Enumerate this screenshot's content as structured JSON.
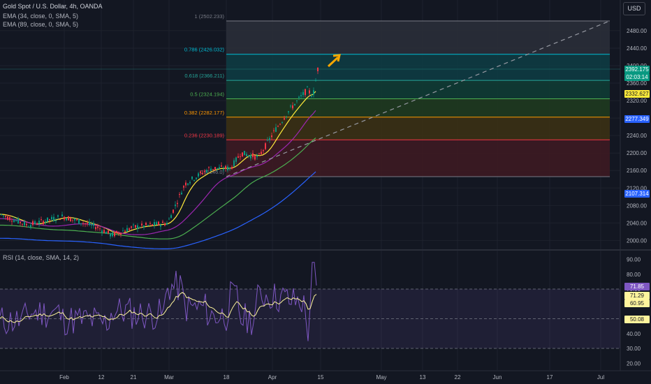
{
  "header": {
    "symbol_title": "Gold Spot / U.S. Dollar, 4h, OANDA",
    "ema1_label": "EMA (34, close, 0, SMA, 5)",
    "ema2_label": "EMA (89, close, 0, SMA, 5)",
    "currency_button": "USD"
  },
  "rsi_panel": {
    "label": "RSI (14, close, SMA, 14, 2)"
  },
  "price_tags": [
    {
      "label": "2392.175",
      "bg": "#089981",
      "fg": "#ffffff"
    },
    {
      "label": "02:03:14",
      "bg": "#089981",
      "fg": "#ffffff"
    },
    {
      "label": "2332.627",
      "bg": "#ffeb3b",
      "fg": "#131722"
    },
    {
      "label": "2277.349",
      "bg": "#2962ff",
      "fg": "#ffffff"
    },
    {
      "label": "2107.314",
      "bg": "#2962ff",
      "fg": "#ffffff"
    }
  ],
  "rsi_tags": [
    {
      "label": "71.85",
      "bg": "#7e57c2",
      "fg": "#ffffff"
    },
    {
      "label": "71.29",
      "bg": "#fff59d",
      "fg": "#131722"
    },
    {
      "label": "60.95",
      "bg": "#fff59d",
      "fg": "#131722"
    },
    {
      "label": "50.08",
      "bg": "#fff59d",
      "fg": "#131722"
    }
  ],
  "chart_data": [
    {
      "type": "candlestick",
      "title": "Gold Spot / U.S. Dollar, 4h, OANDA",
      "ylim": [
        1980,
        2510
      ],
      "y_ticks": [
        2000,
        2040,
        2080,
        2120,
        2160,
        2200,
        2240,
        2280,
        2320,
        2360,
        2400,
        2440,
        2480
      ],
      "x_tick_labels": [
        "Feb",
        "12",
        "21",
        "Mar",
        "18",
        "Apr",
        "15",
        "May",
        "13",
        "22",
        "Jun",
        "17",
        "Jul"
      ],
      "fibonacci": [
        {
          "ratio": "1",
          "price": 2502.233,
          "label": "1 (2502.233)",
          "color": "#787b86"
        },
        {
          "ratio": "0.786",
          "price": 2426.032,
          "label": "0.786 (2426.032)",
          "color": "#00bcd4"
        },
        {
          "ratio": "0.618",
          "price": 2366.211,
          "label": "0.618 (2366.211)",
          "color": "#26a69a"
        },
        {
          "ratio": "0.5",
          "price": 2324.194,
          "label": "0.5 (2324.194)",
          "color": "#4caf50"
        },
        {
          "ratio": "0.382",
          "price": 2282.177,
          "label": "0.382 (2282.177)",
          "color": "#ff9800"
        },
        {
          "ratio": "0.236",
          "price": 2230.189,
          "label": "0.236 (2230.189)",
          "color": "#f23645"
        },
        {
          "ratio": "0",
          "price": 2146.0,
          "label": "0 (2146.0)",
          "color": "#787b86"
        }
      ],
      "last_price": 2392.175,
      "ema_34": 2332.627,
      "ema_89": 2277.349,
      "long_ema": 2107.314,
      "grid": true
    },
    {
      "type": "line",
      "title": "RSI (14, close, SMA, 14, 2)",
      "ylim": [
        15,
        95
      ],
      "y_ticks": [
        20,
        30,
        40,
        50,
        60,
        70,
        80,
        90
      ],
      "upper_band": 70,
      "middle_band": 50,
      "lower_band": 30,
      "rsi_last": 71.85,
      "rsi_ma": 71.29,
      "values_shown": [
        71.85,
        71.29,
        60.95,
        50.08
      ]
    }
  ]
}
